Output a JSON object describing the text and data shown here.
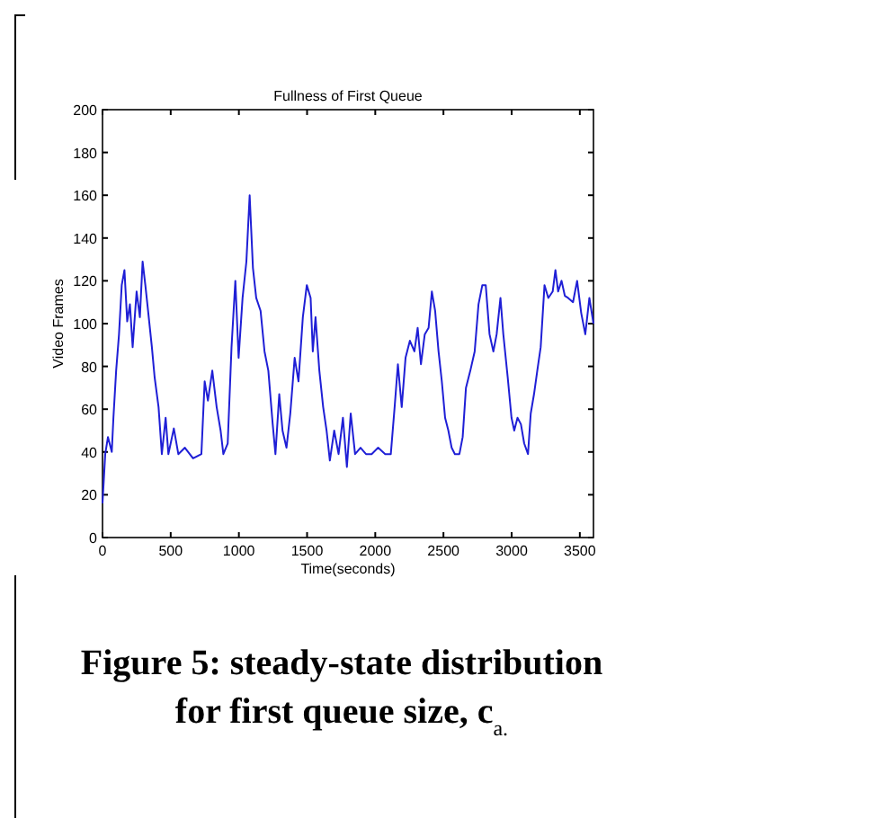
{
  "chart_data": {
    "type": "line",
    "title": "Fullness of First Queue",
    "xlabel": "Time(seconds)",
    "ylabel": "Video Frames",
    "x": [
      0,
      20,
      40,
      68,
      80,
      100,
      121,
      141,
      161,
      181,
      201,
      221,
      250,
      274,
      294,
      314,
      334,
      362,
      382,
      411,
      435,
      463,
      483,
      523,
      556,
      604,
      664,
      725,
      749,
      773,
      805,
      837,
      866,
      886,
      918,
      946,
      974,
      998,
      1027,
      1055,
      1079,
      1103,
      1127,
      1159,
      1188,
      1216,
      1248,
      1268,
      1296,
      1320,
      1349,
      1377,
      1409,
      1437,
      1469,
      1498,
      1526,
      1542,
      1562,
      1590,
      1618,
      1643,
      1667,
      1699,
      1731,
      1763,
      1792,
      1820,
      1852,
      1892,
      1932,
      1973,
      2021,
      2073,
      2114,
      2142,
      2166,
      2194,
      2222,
      2254,
      2287,
      2311,
      2335,
      2363,
      2391,
      2415,
      2439,
      2464,
      2488,
      2512,
      2536,
      2560,
      2584,
      2617,
      2641,
      2665,
      2697,
      2729,
      2757,
      2785,
      2810,
      2838,
      2866,
      2890,
      2918,
      2939,
      2971,
      2999,
      3019,
      3043,
      3068,
      3092,
      3120,
      3140,
      3164,
      3188,
      3213,
      3241,
      3269,
      3301,
      3321,
      3341,
      3366,
      3390,
      3414,
      3450,
      3480,
      3510,
      3540,
      3570,
      3600
    ],
    "series": [
      {
        "color": "#1f1fd6",
        "values": [
          16,
          39,
          47,
          40,
          56,
          78,
          95,
          118,
          125,
          101,
          109,
          89,
          115,
          103,
          129,
          118,
          106,
          89,
          75,
          61,
          39,
          56,
          39,
          51,
          39,
          42,
          37,
          39,
          73,
          64,
          78,
          61,
          50,
          39,
          44,
          89,
          120,
          84,
          112,
          129,
          160,
          126,
          112,
          106,
          87,
          78,
          53,
          39,
          67,
          50,
          42,
          58,
          84,
          73,
          103,
          118,
          112,
          87,
          103,
          78,
          61,
          50,
          36,
          50,
          39,
          56,
          33,
          58,
          39,
          42,
          39,
          39,
          42,
          39,
          39,
          61,
          81,
          61,
          84,
          92,
          87,
          98,
          81,
          95,
          98,
          115,
          106,
          87,
          73,
          56,
          50,
          42,
          39,
          39,
          47,
          70,
          78,
          87,
          109,
          118,
          118,
          95,
          87,
          95,
          112,
          95,
          75,
          56,
          50,
          56,
          53,
          44,
          39,
          58,
          67,
          78,
          89,
          118,
          112,
          115,
          125,
          115,
          120,
          113,
          112,
          110,
          120,
          105,
          95,
          112,
          100
        ]
      }
    ],
    "xlim": [
      0,
      3600
    ],
    "xticks": [
      0,
      500,
      1000,
      1500,
      2000,
      2500,
      3000,
      3500
    ],
    "ylim": [
      0,
      200
    ],
    "yticks": [
      0,
      20,
      40,
      60,
      80,
      100,
      120,
      140,
      160,
      180,
      200
    ],
    "grid": false,
    "line_style": "solid",
    "marker": "none",
    "annotations": [
      "Figure 5: steady-state distribution for first queue size, c$_{a.}$"
    ]
  }
}
